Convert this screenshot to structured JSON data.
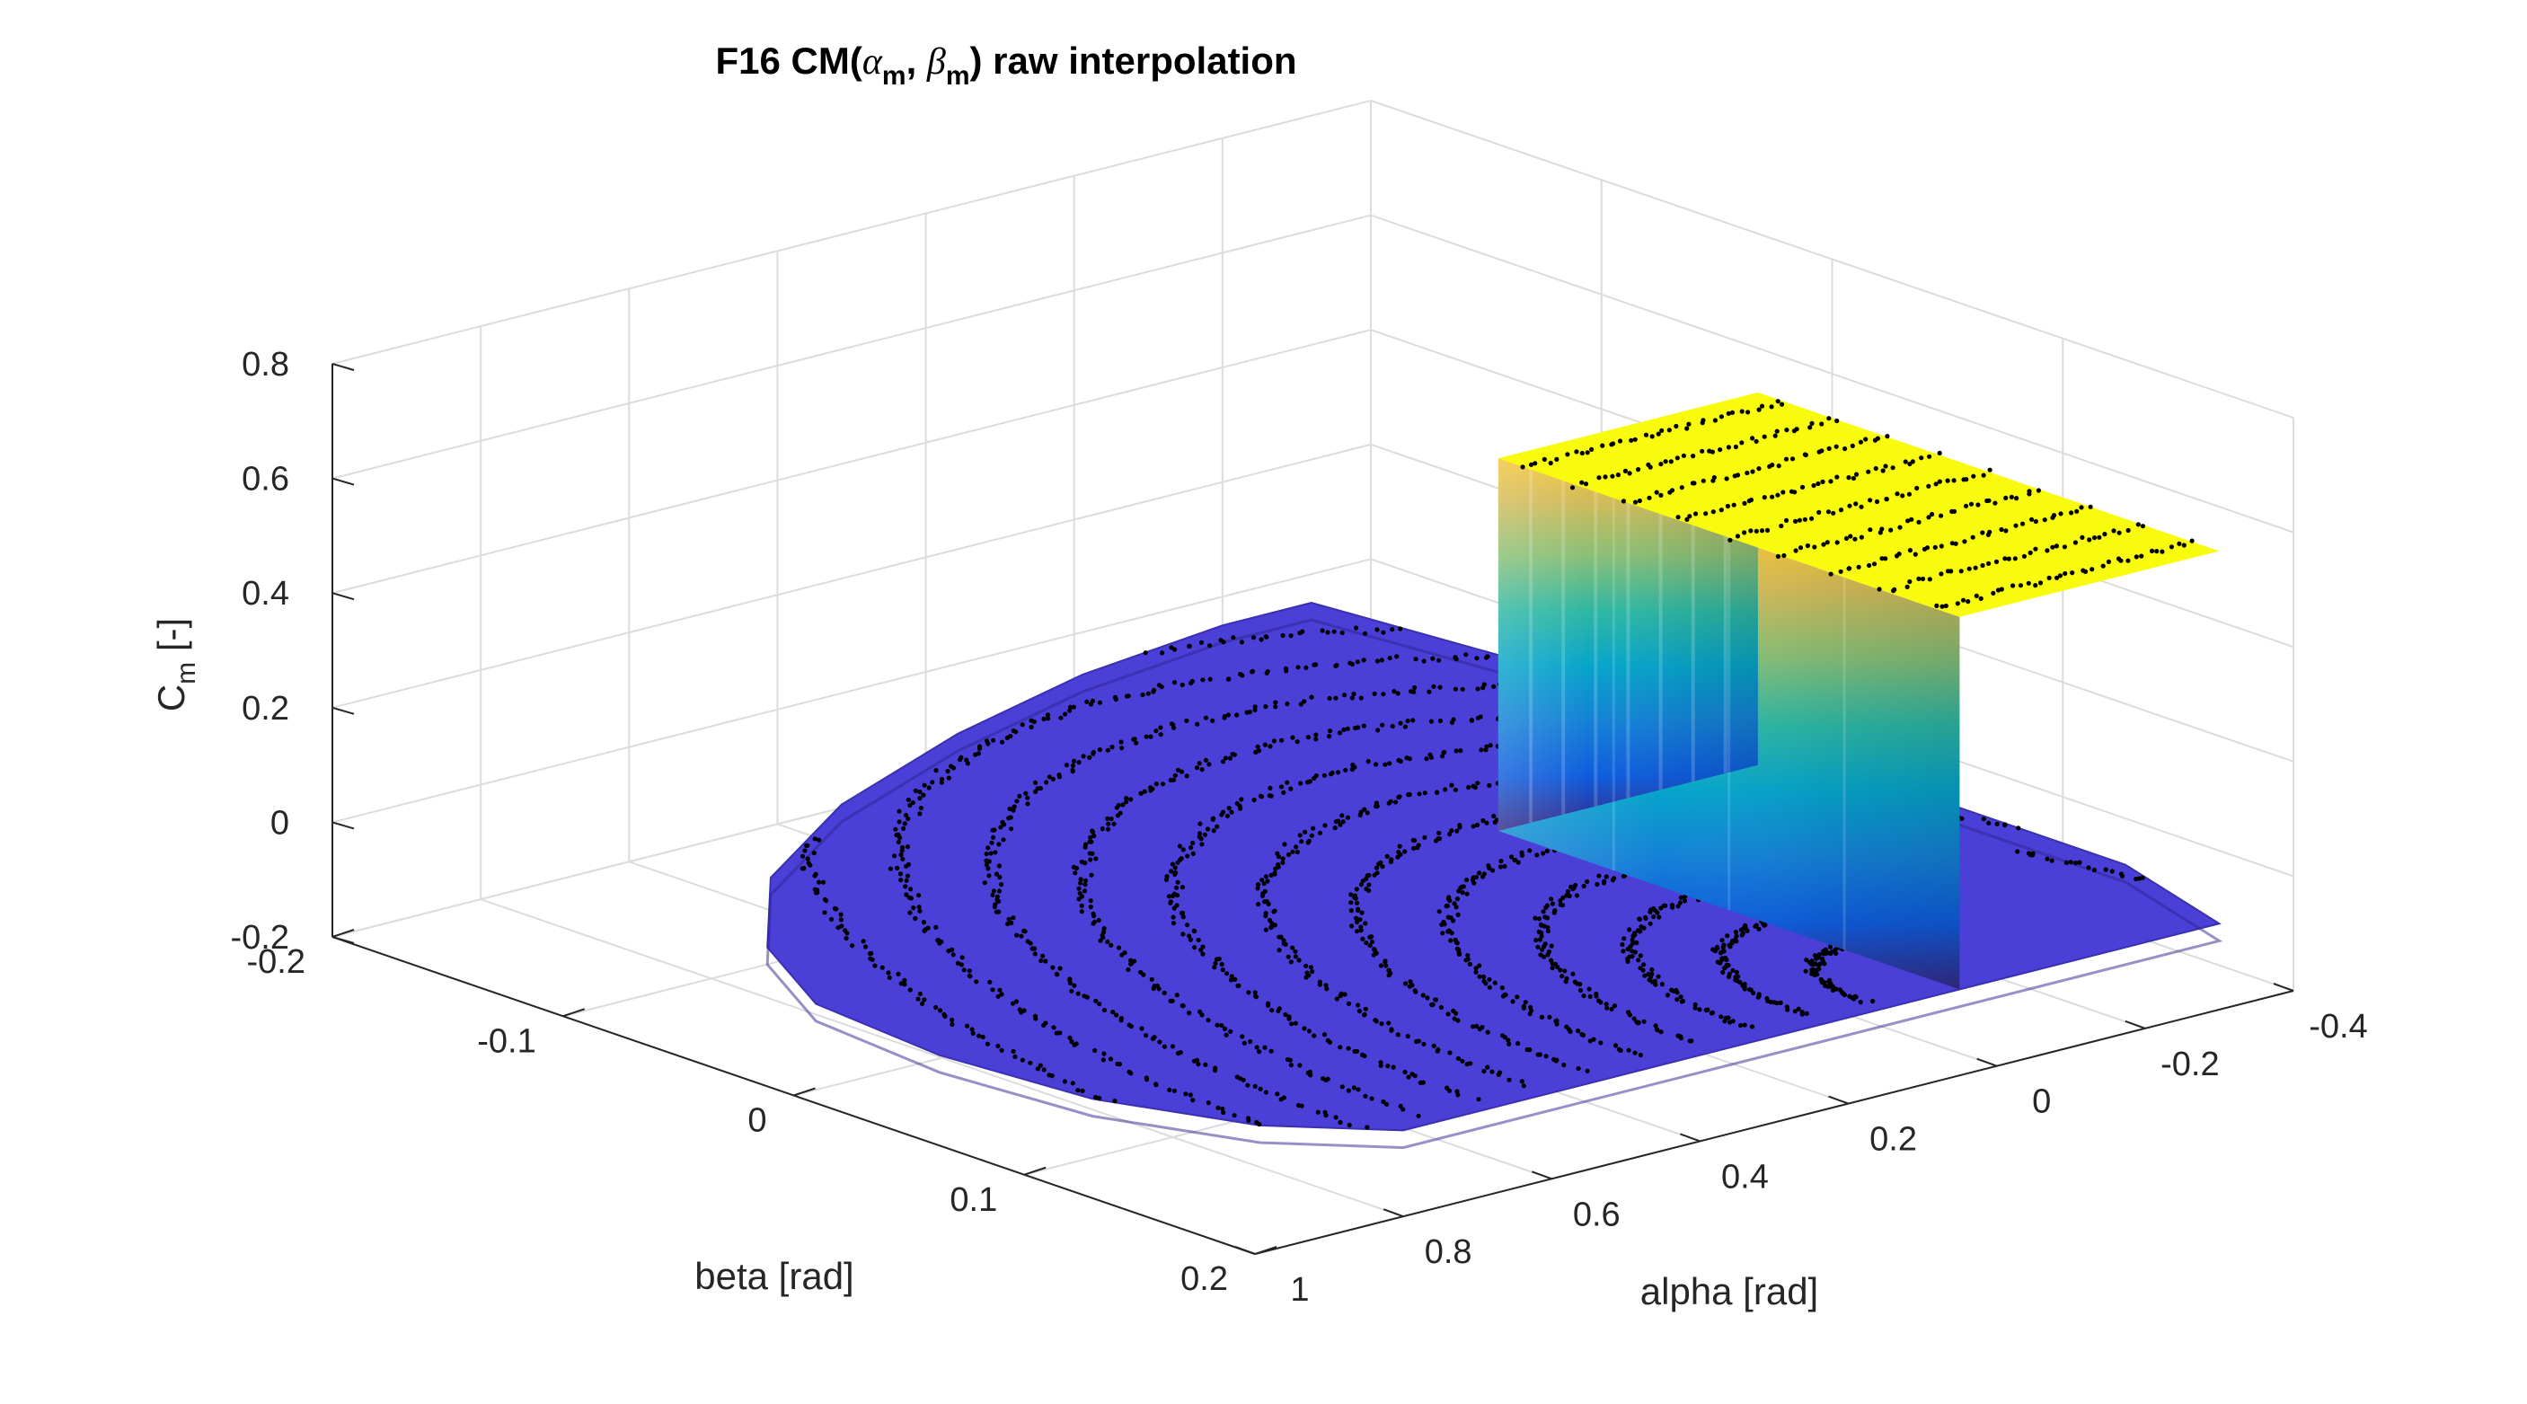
{
  "chart_data": {
    "type": "surface3d",
    "title": {
      "prefix": "F16 CM(",
      "alpha_symbol": "α",
      "alpha_sub": "m",
      "separator": ", ",
      "beta_symbol": "β",
      "beta_sub": "m",
      "suffix": ") raw interpolation"
    },
    "xlabel": "alpha [rad]",
    "ylabel": "beta [rad]",
    "zlabel_main": "C",
    "zlabel_sub": "m",
    "zlabel_suffix": " [-]",
    "xlim": [
      -0.4,
      1.0
    ],
    "ylim": [
      -0.2,
      0.2
    ],
    "zlim": [
      -0.2,
      0.8
    ],
    "x_ticks": [
      {
        "value": -0.4,
        "label": "-0.4"
      },
      {
        "value": -0.2,
        "label": "-0.2"
      },
      {
        "value": 0.0,
        "label": "0"
      },
      {
        "value": 0.2,
        "label": "0.2"
      },
      {
        "value": 0.4,
        "label": "0.4"
      },
      {
        "value": 0.6,
        "label": "0.6"
      },
      {
        "value": 0.8,
        "label": "0.8"
      },
      {
        "value": 1.0,
        "label": "1"
      }
    ],
    "y_ticks": [
      {
        "value": -0.2,
        "label": "-0.2"
      },
      {
        "value": -0.1,
        "label": "-0.1"
      },
      {
        "value": 0.0,
        "label": "0"
      },
      {
        "value": 0.1,
        "label": "0.1"
      },
      {
        "value": 0.2,
        "label": "0.2"
      }
    ],
    "z_ticks": [
      {
        "value": -0.2,
        "label": "-0.2"
      },
      {
        "value": 0.0,
        "label": "0"
      },
      {
        "value": 0.2,
        "label": "0.2"
      },
      {
        "value": 0.4,
        "label": "0.4"
      },
      {
        "value": 0.6,
        "label": "0.6"
      },
      {
        "value": 0.8,
        "label": "0.8"
      }
    ],
    "grid": true,
    "colormap": "parula",
    "surface": {
      "base_cm": -0.05,
      "base_color": "#4a3fd6",
      "plateau_cm": 0.6,
      "plateau_alpha_range": [
        -0.3,
        0.05
      ],
      "plateau_beta_range": [
        0.0,
        0.2
      ],
      "domain_outline": [
        [
          -0.32,
          -0.2
        ],
        [
          -0.2,
          -0.2
        ],
        [
          0.02,
          -0.19
        ],
        [
          0.25,
          -0.17
        ],
        [
          0.5,
          -0.14
        ],
        [
          0.72,
          -0.1
        ],
        [
          0.88,
          -0.05
        ],
        [
          0.97,
          0.0
        ],
        [
          0.99,
          0.06
        ],
        [
          0.97,
          0.12
        ],
        [
          0.9,
          0.17
        ],
        [
          0.8,
          0.2
        ],
        [
          0.4,
          0.2
        ],
        [
          0.0,
          0.2
        ],
        [
          -0.3,
          0.2
        ],
        [
          -0.36,
          0.14
        ],
        [
          -0.36,
          0.0
        ],
        [
          -0.35,
          -0.12
        ],
        [
          -0.32,
          -0.2
        ]
      ]
    },
    "sample_rings": {
      "center": [
        0.05,
        0.19
      ],
      "alpha_radius_min": 0.1,
      "alpha_radius_step": 0.075,
      "count": 12,
      "beta_radius_ratio": 0.42,
      "marker_color": "#000000"
    },
    "plateau_samples": {
      "alpha_range": [
        -0.3,
        0.05
      ],
      "beta_range": [
        0.0,
        0.2
      ],
      "rows": 9,
      "cm": 0.6,
      "marker_color": "#000000"
    },
    "colors": {
      "grid": "#dcdcdc",
      "axis": "#262626",
      "parula": [
        "#352a87",
        "#0f5cdd",
        "#1481d6",
        "#06a4ca",
        "#2eb7a4",
        "#87bf77",
        "#d1bb59",
        "#fec832",
        "#f9fb0e"
      ]
    }
  }
}
